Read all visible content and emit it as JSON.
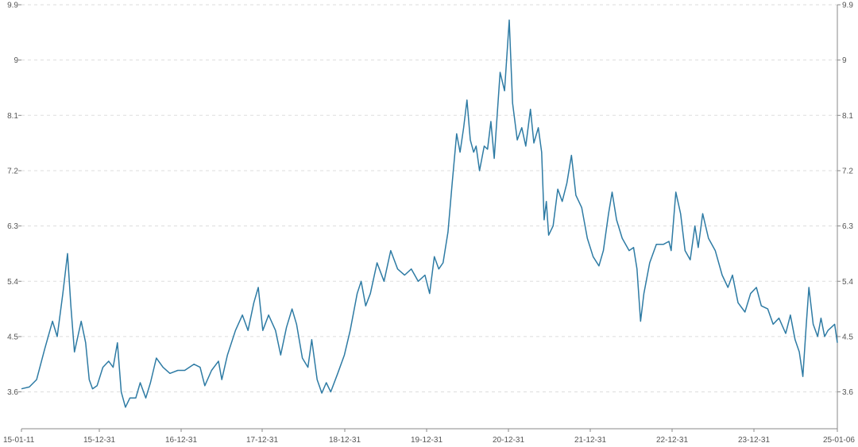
{
  "chart_data": {
    "type": "line",
    "title": "",
    "xlabel": "",
    "ylabel": "",
    "grid": true,
    "colors": {
      "line": "#2e7ba4",
      "grid": "#dddddd",
      "axis": "#888888",
      "text": "#555555"
    },
    "x_ticks": [
      "15-01-11",
      "15-12-31",
      "16-12-31",
      "17-12-31",
      "18-12-31",
      "19-12-31",
      "20-12-31",
      "21-12-31",
      "22-12-31",
      "23-12-31",
      "25-01-06"
    ],
    "y_ticks": [
      "3.6",
      "4.5",
      "5.4",
      "6.3",
      "7.2",
      "8.1",
      "9",
      "9.9"
    ],
    "ylim": [
      3.0,
      9.9
    ],
    "x_range": [
      "2015-01-11",
      "2025-01-06"
    ],
    "series": [
      {
        "values": [
          [
            "2015-01-11",
            3.65
          ],
          [
            "2015-02-15",
            3.68
          ],
          [
            "2015-03-20",
            3.8
          ],
          [
            "2015-04-25",
            4.3
          ],
          [
            "2015-05-30",
            4.75
          ],
          [
            "2015-06-20",
            4.5
          ],
          [
            "2015-07-15",
            5.2
          ],
          [
            "2015-08-05",
            5.85
          ],
          [
            "2015-08-20",
            5.0
          ],
          [
            "2015-09-05",
            4.25
          ],
          [
            "2015-10-05",
            4.75
          ],
          [
            "2015-10-25",
            4.4
          ],
          [
            "2015-11-10",
            3.8
          ],
          [
            "2015-11-25",
            3.65
          ],
          [
            "2015-12-15",
            3.7
          ],
          [
            "2016-01-10",
            4.0
          ],
          [
            "2016-02-05",
            4.1
          ],
          [
            "2016-02-25",
            4.0
          ],
          [
            "2016-03-15",
            4.4
          ],
          [
            "2016-04-01",
            3.6
          ],
          [
            "2016-04-20",
            3.35
          ],
          [
            "2016-05-10",
            3.5
          ],
          [
            "2016-06-05",
            3.5
          ],
          [
            "2016-06-25",
            3.75
          ],
          [
            "2016-07-20",
            3.5
          ],
          [
            "2016-08-10",
            3.75
          ],
          [
            "2016-09-05",
            4.15
          ],
          [
            "2016-10-05",
            4.0
          ],
          [
            "2016-11-05",
            3.9
          ],
          [
            "2016-12-10",
            3.95
          ],
          [
            "2017-01-10",
            3.95
          ],
          [
            "2017-02-20",
            4.05
          ],
          [
            "2017-03-20",
            4.0
          ],
          [
            "2017-04-10",
            3.7
          ],
          [
            "2017-05-10",
            3.95
          ],
          [
            "2017-06-10",
            4.1
          ],
          [
            "2017-06-25",
            3.8
          ],
          [
            "2017-07-20",
            4.2
          ],
          [
            "2017-08-25",
            4.6
          ],
          [
            "2017-09-25",
            4.85
          ],
          [
            "2017-10-20",
            4.6
          ],
          [
            "2017-11-15",
            5.05
          ],
          [
            "2017-12-05",
            5.3
          ],
          [
            "2017-12-25",
            4.6
          ],
          [
            "2018-01-20",
            4.85
          ],
          [
            "2018-02-20",
            4.6
          ],
          [
            "2018-03-15",
            4.2
          ],
          [
            "2018-04-10",
            4.65
          ],
          [
            "2018-05-05",
            4.95
          ],
          [
            "2018-05-25",
            4.7
          ],
          [
            "2018-06-20",
            4.15
          ],
          [
            "2018-07-15",
            4.0
          ],
          [
            "2018-08-01",
            4.45
          ],
          [
            "2018-08-25",
            3.8
          ],
          [
            "2018-09-15",
            3.58
          ],
          [
            "2018-10-05",
            3.75
          ],
          [
            "2018-10-25",
            3.6
          ],
          [
            "2018-11-25",
            3.9
          ],
          [
            "2018-12-25",
            4.2
          ],
          [
            "2019-01-20",
            4.6
          ],
          [
            "2019-02-20",
            5.2
          ],
          [
            "2019-03-10",
            5.4
          ],
          [
            "2019-03-30",
            5.0
          ],
          [
            "2019-04-20",
            5.2
          ],
          [
            "2019-05-20",
            5.7
          ],
          [
            "2019-06-20",
            5.4
          ],
          [
            "2019-07-20",
            5.9
          ],
          [
            "2019-08-20",
            5.6
          ],
          [
            "2019-09-20",
            5.5
          ],
          [
            "2019-10-20",
            5.6
          ],
          [
            "2019-11-20",
            5.4
          ],
          [
            "2019-12-20",
            5.5
          ],
          [
            "2020-01-10",
            5.2
          ],
          [
            "2020-01-31",
            5.8
          ],
          [
            "2020-02-20",
            5.6
          ],
          [
            "2020-03-10",
            5.7
          ],
          [
            "2020-04-01",
            6.2
          ],
          [
            "2020-04-20",
            7.0
          ],
          [
            "2020-05-10",
            7.8
          ],
          [
            "2020-05-25",
            7.5
          ],
          [
            "2020-06-10",
            7.9
          ],
          [
            "2020-06-25",
            8.35
          ],
          [
            "2020-07-10",
            7.7
          ],
          [
            "2020-07-25",
            7.5
          ],
          [
            "2020-08-05",
            7.6
          ],
          [
            "2020-08-20",
            7.2
          ],
          [
            "2020-09-10",
            7.6
          ],
          [
            "2020-09-25",
            7.55
          ],
          [
            "2020-10-10",
            8.0
          ],
          [
            "2020-10-25",
            7.4
          ],
          [
            "2020-11-20",
            8.8
          ],
          [
            "2020-12-10",
            8.5
          ],
          [
            "2020-12-31",
            9.65
          ],
          [
            "2021-01-15",
            8.3
          ],
          [
            "2021-02-05",
            7.7
          ],
          [
            "2021-02-25",
            7.9
          ],
          [
            "2021-03-15",
            7.6
          ],
          [
            "2021-04-05",
            8.2
          ],
          [
            "2021-04-20",
            7.65
          ],
          [
            "2021-05-10",
            7.9
          ],
          [
            "2021-05-25",
            7.5
          ],
          [
            "2021-06-05",
            6.4
          ],
          [
            "2021-06-15",
            6.7
          ],
          [
            "2021-06-25",
            6.15
          ],
          [
            "2021-07-15",
            6.3
          ],
          [
            "2021-08-05",
            6.9
          ],
          [
            "2021-08-25",
            6.7
          ],
          [
            "2021-09-15",
            7.0
          ],
          [
            "2021-10-05",
            7.45
          ],
          [
            "2021-10-25",
            6.8
          ],
          [
            "2021-11-20",
            6.6
          ],
          [
            "2021-12-15",
            6.1
          ],
          [
            "2022-01-10",
            5.8
          ],
          [
            "2022-02-05",
            5.65
          ],
          [
            "2022-02-25",
            5.9
          ],
          [
            "2022-03-20",
            6.5
          ],
          [
            "2022-04-05",
            6.85
          ],
          [
            "2022-04-25",
            6.4
          ],
          [
            "2022-05-20",
            6.1
          ],
          [
            "2022-06-20",
            5.9
          ],
          [
            "2022-07-10",
            5.95
          ],
          [
            "2022-07-25",
            5.6
          ],
          [
            "2022-08-10",
            4.75
          ],
          [
            "2022-08-25",
            5.2
          ],
          [
            "2022-09-20",
            5.7
          ],
          [
            "2022-10-20",
            6.0
          ],
          [
            "2022-11-20",
            6.0
          ],
          [
            "2022-12-15",
            6.05
          ],
          [
            "2022-12-25",
            5.9
          ],
          [
            "2023-01-15",
            6.85
          ],
          [
            "2023-02-05",
            6.5
          ],
          [
            "2023-02-25",
            5.9
          ],
          [
            "2023-03-20",
            5.75
          ],
          [
            "2023-04-10",
            6.3
          ],
          [
            "2023-04-25",
            5.95
          ],
          [
            "2023-05-15",
            6.5
          ],
          [
            "2023-06-10",
            6.1
          ],
          [
            "2023-07-10",
            5.9
          ],
          [
            "2023-08-10",
            5.5
          ],
          [
            "2023-09-05",
            5.3
          ],
          [
            "2023-09-25",
            5.5
          ],
          [
            "2023-10-20",
            5.05
          ],
          [
            "2023-11-20",
            4.9
          ],
          [
            "2023-12-15",
            5.2
          ],
          [
            "2024-01-10",
            5.3
          ],
          [
            "2024-02-01",
            5.0
          ],
          [
            "2024-03-01",
            4.95
          ],
          [
            "2024-03-25",
            4.7
          ],
          [
            "2024-04-20",
            4.8
          ],
          [
            "2024-05-20",
            4.55
          ],
          [
            "2024-06-10",
            4.85
          ],
          [
            "2024-07-01",
            4.45
          ],
          [
            "2024-07-20",
            4.25
          ],
          [
            "2024-08-05",
            3.85
          ],
          [
            "2024-08-20",
            4.7
          ],
          [
            "2024-09-01",
            5.3
          ],
          [
            "2024-09-20",
            4.7
          ],
          [
            "2024-10-10",
            4.5
          ],
          [
            "2024-10-25",
            4.8
          ],
          [
            "2024-11-10",
            4.5
          ],
          [
            "2024-11-25",
            4.6
          ],
          [
            "2024-12-10",
            4.65
          ],
          [
            "2024-12-25",
            4.7
          ],
          [
            "2025-01-06",
            4.4
          ]
        ]
      }
    ]
  }
}
